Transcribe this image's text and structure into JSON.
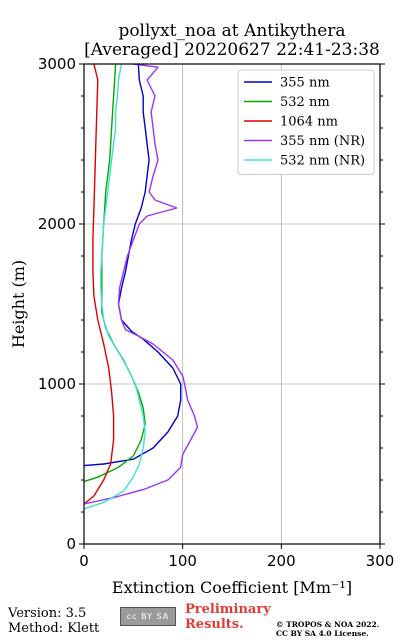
{
  "title_line1": "pollyxt_noa at Antikythera",
  "title_line2": "[Averaged] 20220627 22:41-23:38",
  "footer": {
    "version": "Version: 3.5",
    "method": "Method: Klett",
    "cc_badge": "cc BY SA",
    "preliminary_line1": "Preliminary",
    "preliminary_line2": "Results.",
    "copyright_line1": "© TROPOS & NOA 2022.",
    "copyright_line2": "CC BY SA 4.0 License."
  },
  "chart_data": {
    "type": "line",
    "xlabel": "Extinction Coefficient [Mm⁻¹]",
    "ylabel": "Height (m)",
    "xlim": [
      0,
      300
    ],
    "ylim": [
      0,
      3000
    ],
    "xticks": [
      0,
      100,
      200,
      300
    ],
    "yticks": [
      0,
      1000,
      2000,
      3000
    ],
    "grid": true,
    "legend_position": "top-right",
    "series": [
      {
        "name": "355 nm",
        "color": "#0000cc",
        "points": [
          [
            0,
            490
          ],
          [
            20,
            500
          ],
          [
            50,
            530
          ],
          [
            70,
            600
          ],
          [
            85,
            700
          ],
          [
            95,
            800
          ],
          [
            98,
            900
          ],
          [
            98,
            1000
          ],
          [
            90,
            1100
          ],
          [
            75,
            1200
          ],
          [
            60,
            1280
          ],
          [
            48,
            1330
          ],
          [
            38,
            1400
          ],
          [
            35,
            1500
          ],
          [
            38,
            1600
          ],
          [
            42,
            1700
          ],
          [
            45,
            1800
          ],
          [
            48,
            1900
          ],
          [
            52,
            2000
          ],
          [
            58,
            2100
          ],
          [
            62,
            2200
          ],
          [
            64,
            2300
          ],
          [
            66,
            2400
          ],
          [
            64,
            2500
          ],
          [
            62,
            2600
          ],
          [
            60,
            2700
          ],
          [
            60,
            2800
          ],
          [
            56,
            2900
          ],
          [
            55,
            3000
          ]
        ]
      },
      {
        "name": "532 nm",
        "color": "#00aa00",
        "points": [
          [
            0,
            390
          ],
          [
            15,
            420
          ],
          [
            35,
            480
          ],
          [
            50,
            550
          ],
          [
            58,
            650
          ],
          [
            62,
            750
          ],
          [
            60,
            850
          ],
          [
            55,
            950
          ],
          [
            48,
            1050
          ],
          [
            40,
            1150
          ],
          [
            30,
            1250
          ],
          [
            22,
            1350
          ],
          [
            18,
            1450
          ],
          [
            18,
            1600
          ],
          [
            18,
            1800
          ],
          [
            20,
            2000
          ],
          [
            22,
            2200
          ],
          [
            26,
            2400
          ],
          [
            28,
            2600
          ],
          [
            30,
            2800
          ],
          [
            32,
            3000
          ]
        ]
      },
      {
        "name": "1064 nm",
        "color": "#dd0000",
        "points": [
          [
            0,
            250
          ],
          [
            10,
            300
          ],
          [
            20,
            400
          ],
          [
            27,
            500
          ],
          [
            30,
            650
          ],
          [
            30,
            800
          ],
          [
            28,
            950
          ],
          [
            25,
            1100
          ],
          [
            20,
            1250
          ],
          [
            14,
            1400
          ],
          [
            10,
            1550
          ],
          [
            9,
            1700
          ],
          [
            9,
            1900
          ],
          [
            10,
            2100
          ],
          [
            11,
            2300
          ],
          [
            12,
            2500
          ],
          [
            13,
            2700
          ],
          [
            14,
            2900
          ],
          [
            10,
            3000
          ]
        ]
      },
      {
        "name": "355 nm (NR)",
        "color": "#9933ff",
        "points": [
          [
            0,
            250
          ],
          [
            30,
            290
          ],
          [
            60,
            340
          ],
          [
            85,
            400
          ],
          [
            98,
            480
          ],
          [
            100,
            560
          ],
          [
            108,
            650
          ],
          [
            115,
            730
          ],
          [
            112,
            800
          ],
          [
            105,
            900
          ],
          [
            102,
            1000
          ],
          [
            100,
            1050
          ],
          [
            95,
            1100
          ],
          [
            90,
            1150
          ],
          [
            80,
            1200
          ],
          [
            70,
            1250
          ],
          [
            55,
            1300
          ],
          [
            42,
            1340
          ],
          [
            38,
            1400
          ],
          [
            35,
            1500
          ],
          [
            36,
            1600
          ],
          [
            40,
            1700
          ],
          [
            44,
            1800
          ],
          [
            50,
            1900
          ],
          [
            56,
            2000
          ],
          [
            64,
            2050
          ],
          [
            94,
            2100
          ],
          [
            72,
            2150
          ],
          [
            66,
            2200
          ],
          [
            70,
            2300
          ],
          [
            75,
            2400
          ],
          [
            72,
            2500
          ],
          [
            70,
            2600
          ],
          [
            68,
            2700
          ],
          [
            72,
            2800
          ],
          [
            64,
            2900
          ],
          [
            75,
            2980
          ],
          [
            50,
            3000
          ]
        ]
      },
      {
        "name": "532 nm (NR)",
        "color": "#40e0d0",
        "points": [
          [
            0,
            220
          ],
          [
            20,
            260
          ],
          [
            40,
            330
          ],
          [
            50,
            420
          ],
          [
            56,
            500
          ],
          [
            60,
            600
          ],
          [
            62,
            700
          ],
          [
            60,
            800
          ],
          [
            56,
            900
          ],
          [
            52,
            1000
          ],
          [
            44,
            1100
          ],
          [
            35,
            1200
          ],
          [
            25,
            1300
          ],
          [
            20,
            1400
          ],
          [
            18,
            1500
          ],
          [
            17,
            1600
          ],
          [
            17,
            1700
          ],
          [
            18,
            1800
          ],
          [
            19,
            1900
          ],
          [
            20,
            2000
          ],
          [
            22,
            2100
          ],
          [
            24,
            2200
          ],
          [
            26,
            2300
          ],
          [
            28,
            2400
          ],
          [
            30,
            2500
          ],
          [
            32,
            2600
          ],
          [
            32,
            2700
          ],
          [
            34,
            2800
          ],
          [
            35,
            2900
          ],
          [
            38,
            3000
          ]
        ]
      }
    ]
  }
}
